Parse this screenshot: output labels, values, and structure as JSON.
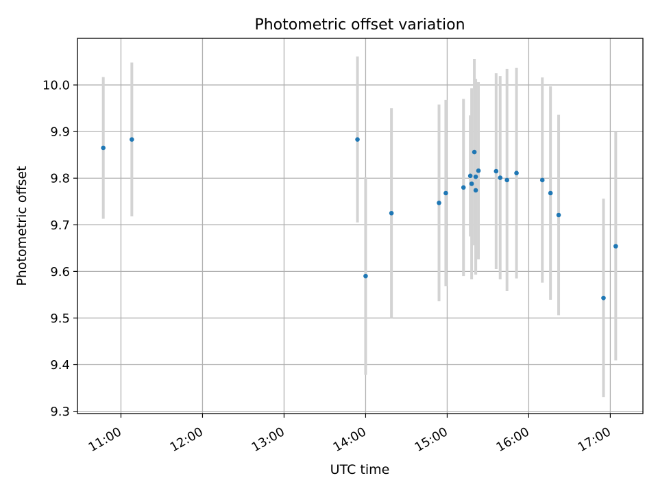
{
  "chart_data": {
    "type": "scatter",
    "title": "Photometric offset variation",
    "xlabel": "UTC time",
    "ylabel": "Photometric offset",
    "x_tick_labels": [
      "11:00",
      "12:00",
      "13:00",
      "14:00",
      "15:00",
      "16:00",
      "17:00"
    ],
    "y_tick_labels": [
      "9.3",
      "9.4",
      "9.5",
      "9.6",
      "9.7",
      "9.8",
      "9.9",
      "10.0"
    ],
    "xlim": [
      "10:28",
      "17:24"
    ],
    "ylim": [
      9.295,
      10.1
    ],
    "grid": true,
    "colors": {
      "points": "#1f77b4",
      "errorbars": "#d3d3d3",
      "grid": "#b0b0b0"
    },
    "series": [
      {
        "points": [
          {
            "x": "10:47",
            "y": 9.865,
            "yerr": 0.152
          },
          {
            "x": "11:08",
            "y": 9.883,
            "yerr": 0.165
          },
          {
            "x": "13:54",
            "y": 9.883,
            "yerr": 0.178
          },
          {
            "x": "14:00",
            "y": 9.59,
            "yerr": 0.212
          },
          {
            "x": "14:19",
            "y": 9.725,
            "yerr": 0.225
          },
          {
            "x": "14:54",
            "y": 9.747,
            "yerr": 0.211
          },
          {
            "x": "14:59",
            "y": 9.768,
            "yerr": 0.2
          },
          {
            "x": "15:12",
            "y": 9.78,
            "yerr": 0.19
          },
          {
            "x": "15:17",
            "y": 9.805,
            "yerr": 0.13
          },
          {
            "x": "15:18",
            "y": 9.788,
            "yerr": 0.205
          },
          {
            "x": "15:20",
            "y": 9.856,
            "yerr": 0.2
          },
          {
            "x": "15:21",
            "y": 9.774,
            "yerr": 0.18
          },
          {
            "x": "15:21",
            "y": 9.803,
            "yerr": 0.21
          },
          {
            "x": "15:23",
            "y": 9.816,
            "yerr": 0.19
          },
          {
            "x": "15:36",
            "y": 9.815,
            "yerr": 0.21
          },
          {
            "x": "15:39",
            "y": 9.801,
            "yerr": 0.218
          },
          {
            "x": "15:44",
            "y": 9.796,
            "yerr": 0.238
          },
          {
            "x": "15:51",
            "y": 9.811,
            "yerr": 0.226
          },
          {
            "x": "16:10",
            "y": 9.796,
            "yerr": 0.22
          },
          {
            "x": "16:16",
            "y": 9.768,
            "yerr": 0.229
          },
          {
            "x": "16:22",
            "y": 9.721,
            "yerr": 0.215
          },
          {
            "x": "16:55",
            "y": 9.543,
            "yerr": 0.213
          },
          {
            "x": "17:04",
            "y": 9.654,
            "yerr": 0.245
          }
        ]
      }
    ]
  }
}
